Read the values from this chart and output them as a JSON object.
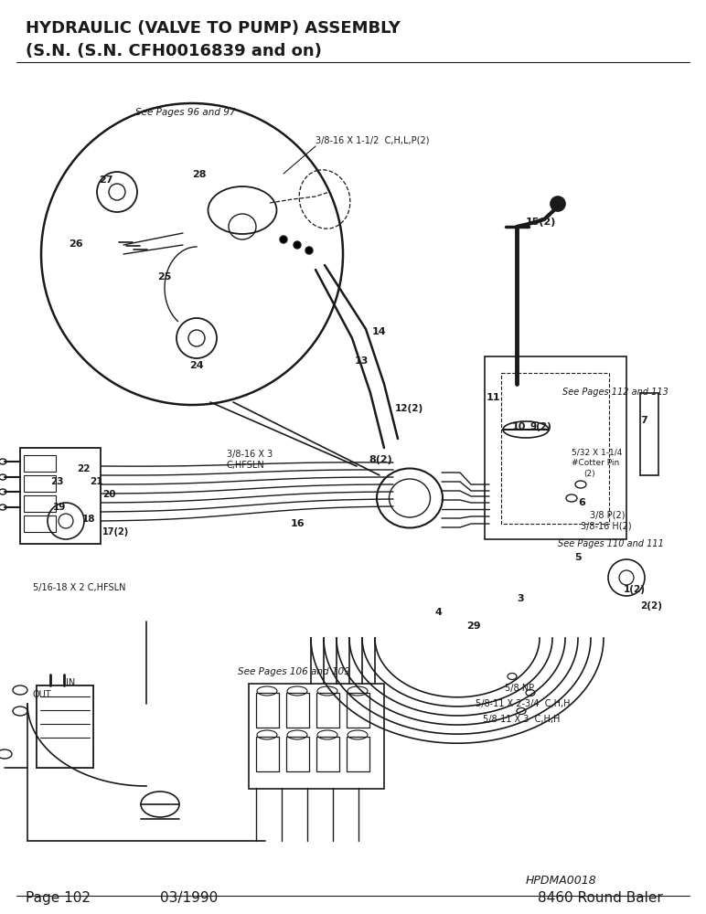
{
  "title_line1": "HYDRAULIC (VALVE TO PUMP) ASSEMBLY",
  "title_line2": "(S.N. (S.N. CFH0016839 and on)",
  "footer_left": "Page 102",
  "footer_center": "03/1990",
  "footer_right": "8460 Round Baler",
  "footer_code": "HPDMA0018",
  "bg_color": "#ffffff",
  "text_color": "#000000",
  "diagram_color": "#1a1a1a"
}
